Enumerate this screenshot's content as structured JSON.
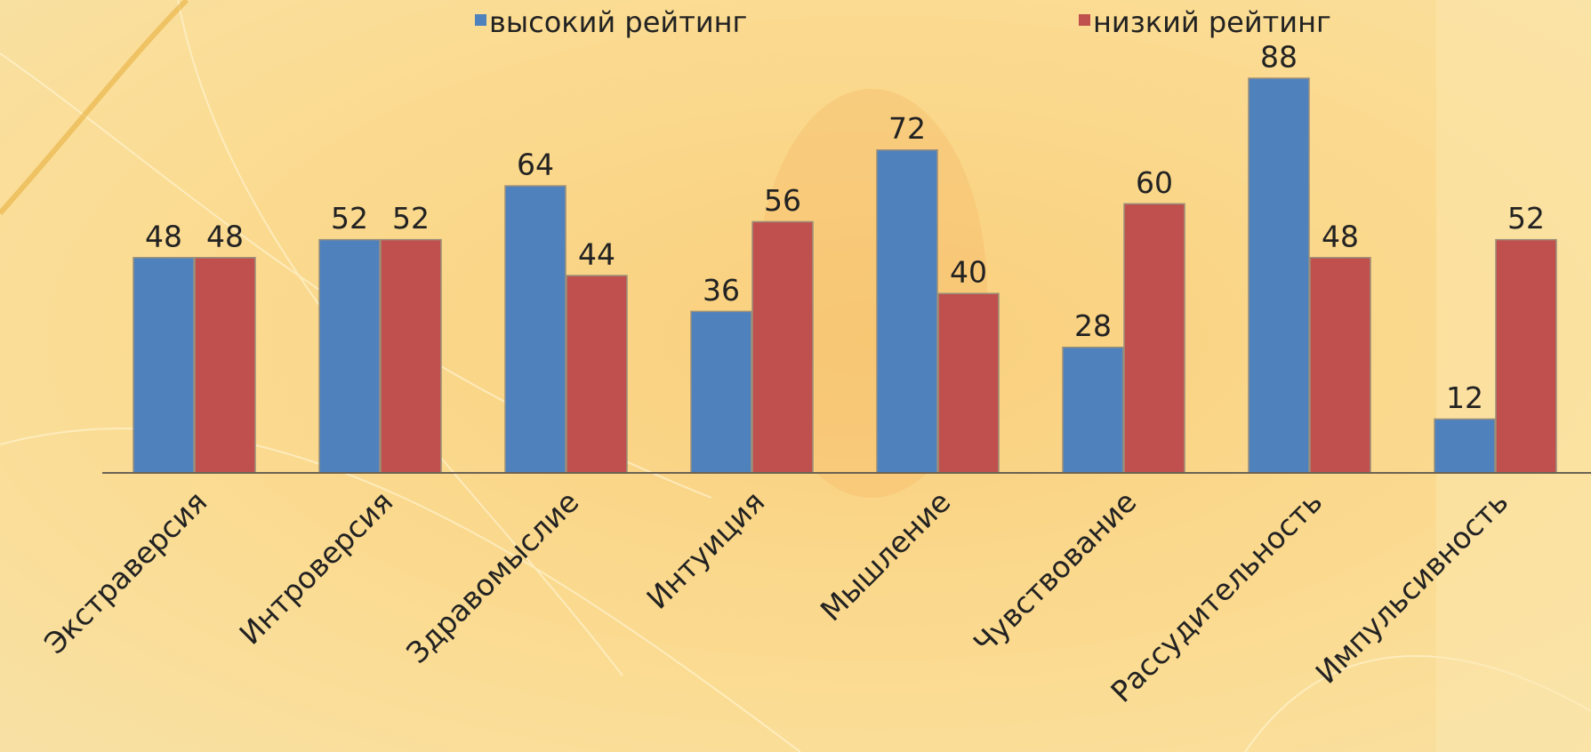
{
  "chart_data": {
    "type": "bar",
    "categories": [
      "Экстраверсия",
      "Интроверсия",
      "Здравомыслие",
      "Интуиция",
      "Мышление",
      "Чувствование",
      "Рассудительность",
      "Импульсивность"
    ],
    "series": [
      {
        "name": "высокий рейтинг",
        "color": "#4f81bd",
        "values": [
          48,
          52,
          64,
          36,
          72,
          28,
          88,
          12
        ]
      },
      {
        "name": "низкий рейтинг",
        "color": "#c0504d",
        "values": [
          48,
          52,
          44,
          56,
          40,
          60,
          48,
          52
        ]
      }
    ],
    "legend": "top"
  }
}
